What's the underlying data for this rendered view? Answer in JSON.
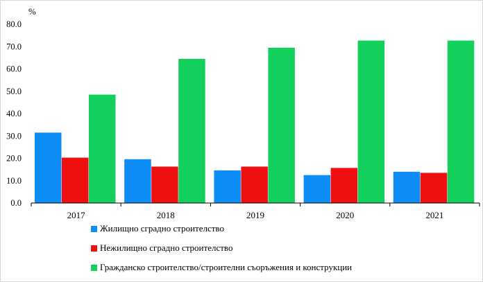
{
  "chart_data": {
    "type": "bar",
    "ylabel": "%",
    "ylim": [
      0,
      80
    ],
    "yticks": [
      "0.0",
      "10.0",
      "20.0",
      "30.0",
      "40.0",
      "50.0",
      "60.0",
      "70.0",
      "80.0"
    ],
    "categories": [
      "2017",
      "2018",
      "2019",
      "2020",
      "2021"
    ],
    "series": [
      {
        "name": "Жилищно сградно строителство",
        "color": "#0d8df5",
        "values": [
          31.5,
          19.6,
          14.6,
          12.5,
          14.0
        ]
      },
      {
        "name": "Нежилищно сградно строителство",
        "color": "#ee0f0f",
        "values": [
          20.3,
          16.3,
          16.3,
          15.7,
          13.5
        ]
      },
      {
        "name": "Гражданско строителство/строителни  съоръжения и конструкции",
        "color": "#13cf5c",
        "values": [
          48.5,
          64.5,
          69.5,
          72.7,
          72.7
        ]
      }
    ],
    "grid": false,
    "legend_position": "bottom"
  }
}
